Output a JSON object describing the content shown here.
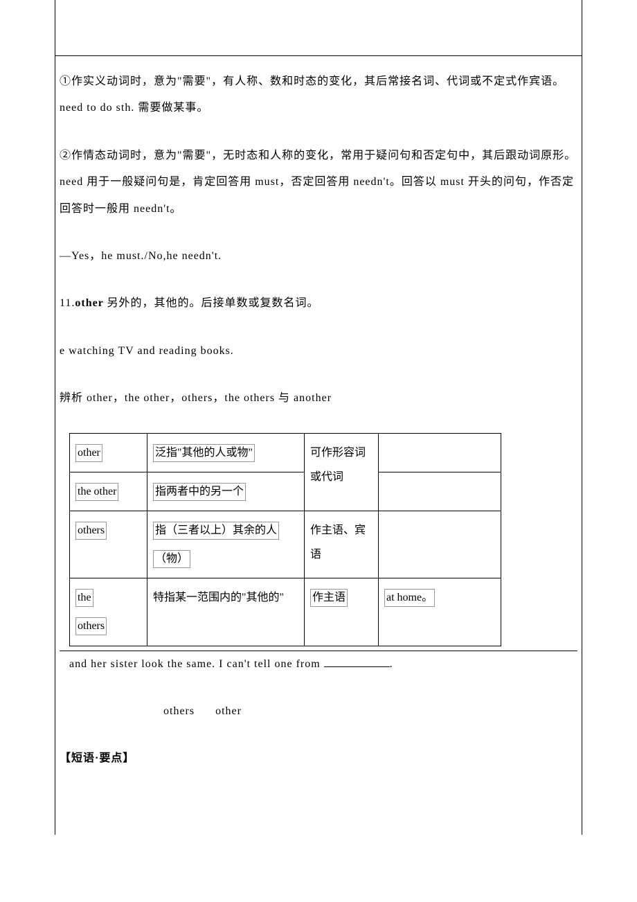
{
  "p1": "①作实义动词时，意为\"需要\"，有人称、数和时态的变化，其后常接名词、代词或不定式作宾语。need to do sth. 需要做某事。",
  "p2": "②作情态动词时，意为\"需要\"，无时态和人称的变化，常用于疑问句和否定句中，其后跟动词原形。need 用于一般疑问句是，肯定回答用 must，否定回答用 needn't。回答以 must 开头的问句，作否定回答时一般用 needn't。",
  "p3": "—Yes，he must./No,he needn't.",
  "p4_prefix": "11.",
  "p4_bold": "other ",
  "p4_rest": "另外的，其他的。后接单数或复数名词。",
  "p5": "e watching TV and reading books.",
  "p6": "辨析 other，the other，others，the others 与 another",
  "table": {
    "r1": {
      "c1": "other",
      "c2": "泛指\"其他的人或物\"",
      "c3_rowspan": "可作形容词或代词",
      "c4": ""
    },
    "r2": {
      "c1": "the other",
      "c2": "指两者中的另一个",
      "c4": ""
    },
    "r3": {
      "c1": "others",
      "c2a": "指（三者以上）其余的人",
      "c2b": "（物）",
      "c3": "作主语、宾语",
      "c4": ""
    },
    "r4": {
      "c1a": "the",
      "c1b": "others",
      "c2": "特指某一范围内的\"其他的\"",
      "c3": "作主语",
      "c4": "at home。"
    }
  },
  "p7_text": " and her sister look the same. I can't tell one from ",
  "p7_end": ".",
  "p8_a": "others",
  "p8_b": "other",
  "p9": "【短语·要点】",
  "colors": {
    "text": "#000000",
    "border": "#000000",
    "box_border": "#999999",
    "bg": "#ffffff"
  }
}
